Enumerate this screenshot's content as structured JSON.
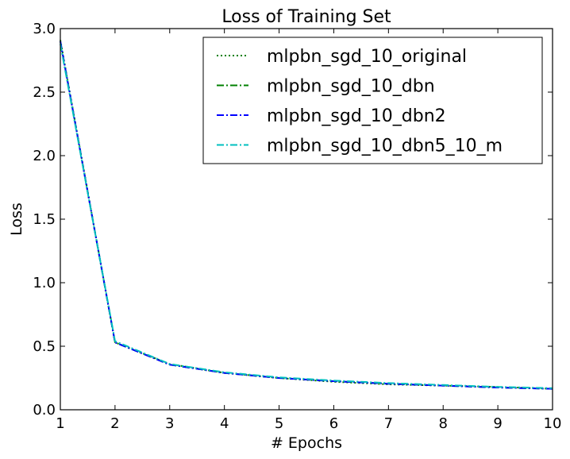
{
  "chart_data": {
    "type": "line",
    "title": "Loss of Training Set",
    "xlabel": "# Epochs",
    "ylabel": "Loss",
    "xlim": [
      1,
      10
    ],
    "ylim": [
      0.0,
      3.0
    ],
    "x_ticks": [
      1,
      2,
      3,
      4,
      5,
      6,
      7,
      8,
      9,
      10
    ],
    "x_tick_labels": [
      "1",
      "2",
      "3",
      "4",
      "5",
      "6",
      "7",
      "8",
      "9",
      "10"
    ],
    "y_ticks": [
      0.0,
      0.5,
      1.0,
      1.5,
      2.0,
      2.5,
      3.0
    ],
    "y_tick_labels": [
      "0.0",
      "0.5",
      "1.0",
      "1.5",
      "2.0",
      "2.5",
      "3.0"
    ],
    "grid": false,
    "legend_position": "top-right",
    "x": [
      1,
      2,
      3,
      4,
      5,
      6,
      7,
      8,
      9,
      10
    ],
    "series": [
      {
        "name": "mlpbn_sgd_10_original",
        "color": "#008000",
        "linestyle": "dotted",
        "values": [
          2.91,
          0.53,
          0.36,
          0.29,
          0.25,
          0.22,
          0.2,
          0.19,
          0.18,
          0.165
        ]
      },
      {
        "name": "mlpbn_sgd_10_dbn",
        "color": "#008000",
        "linestyle": "dashdot",
        "values": [
          2.9,
          0.53,
          0.355,
          0.29,
          0.25,
          0.225,
          0.205,
          0.19,
          0.175,
          0.165
        ]
      },
      {
        "name": "mlpbn_sgd_10_dbn2",
        "color": "#0000ff",
        "linestyle": "dashdot",
        "values": [
          2.9,
          0.53,
          0.355,
          0.29,
          0.25,
          0.225,
          0.205,
          0.19,
          0.175,
          0.165
        ]
      },
      {
        "name": "mlpbn_sgd_10_dbn5_10_m",
        "color": "#00bfbf",
        "linestyle": "dashdot",
        "values": [
          2.88,
          0.54,
          0.36,
          0.295,
          0.255,
          0.23,
          0.21,
          0.195,
          0.18,
          0.17
        ]
      }
    ]
  }
}
